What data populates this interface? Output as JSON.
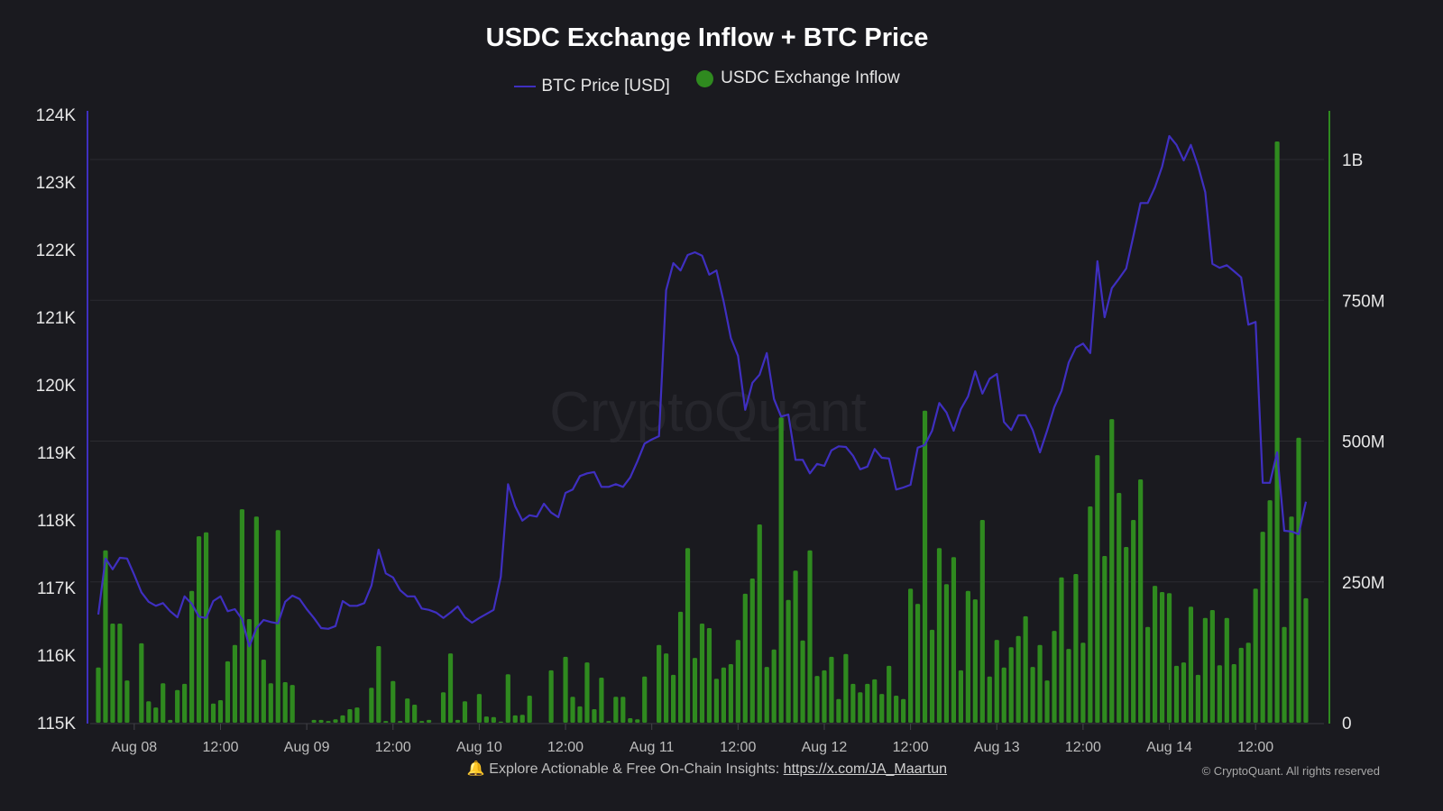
{
  "chart_data": {
    "type": "bar+line",
    "title": "USDC Exchange Inflow + BTC Price",
    "legend": [
      "BTC Price [USD]",
      "USDC Exchange Inflow"
    ],
    "legend_position": "top-center",
    "x_start": "Aug 07 19:00",
    "x_interval": "1 hour",
    "x_tick_labels": [
      "Aug 08",
      "12:00",
      "Aug 09",
      "12:00",
      "Aug 10",
      "12:00",
      "Aug 11",
      "12:00",
      "Aug 12",
      "12:00",
      "Aug 13",
      "12:00",
      "Aug 14",
      "12:00"
    ],
    "y_left": {
      "label": "BTC Price [USD]",
      "range": [
        115000,
        124000
      ],
      "tick_labels": [
        "115K",
        "116K",
        "117K",
        "118K",
        "119K",
        "120K",
        "121K",
        "122K",
        "123K",
        "124K"
      ]
    },
    "y_right": {
      "label": "USDC Exchange Inflow",
      "unit": "M USD",
      "range": [
        0,
        1080
      ],
      "tick_labels": [
        "0",
        "250M",
        "500M",
        "750M",
        "1B"
      ]
    },
    "grid": "horizontal, right axis",
    "colors": {
      "background": "#1a1a1f",
      "price_line": "#3f2fc0",
      "inflow_bars": "#2f8a1f",
      "grid": "#2b2b31"
    },
    "series": [
      {
        "name": "BTC Price [USD]",
        "type": "line",
        "axis": "left",
        "values": [
          116600,
          117430,
          117270,
          117440,
          117430,
          117190,
          116930,
          116790,
          116730,
          116770,
          116650,
          116560,
          116870,
          116760,
          116570,
          116550,
          116800,
          116870,
          116650,
          116680,
          116530,
          116130,
          116400,
          116520,
          116490,
          116470,
          116790,
          116880,
          116830,
          116680,
          116550,
          116400,
          116390,
          116430,
          116800,
          116730,
          116730,
          116770,
          117030,
          117560,
          117210,
          117150,
          116960,
          116870,
          116870,
          116690,
          116670,
          116630,
          116550,
          116630,
          116720,
          116560,
          116480,
          116550,
          116610,
          116670,
          117160,
          118530,
          118200,
          117990,
          118070,
          118050,
          118240,
          118110,
          118040,
          118400,
          118450,
          118650,
          118690,
          118710,
          118490,
          118490,
          118530,
          118490,
          118630,
          118870,
          119130,
          119190,
          119240,
          121400,
          121800,
          121690,
          121920,
          121960,
          121910,
          121630,
          121690,
          121230,
          120690,
          120430,
          119630,
          120030,
          120150,
          120470,
          119790,
          119530,
          119560,
          118890,
          118890,
          118690,
          118830,
          118800,
          119030,
          119090,
          119080,
          118950,
          118750,
          118790,
          119050,
          118920,
          118910,
          118450,
          118480,
          118520,
          119070,
          119110,
          119320,
          119730,
          119590,
          119320,
          119640,
          119830,
          120200,
          119870,
          120090,
          120160,
          119450,
          119330,
          119550,
          119550,
          119330,
          119000,
          119320,
          119670,
          119910,
          120330,
          120550,
          120610,
          120470,
          121830,
          121000,
          121430,
          121570,
          121720,
          122200,
          122690,
          122690,
          122920,
          123230,
          123680,
          123550,
          123320,
          123550,
          123240,
          122850,
          121790,
          121730,
          121770,
          121680,
          121590,
          120890,
          120930,
          118550,
          118550,
          119000,
          117840,
          117830,
          117790,
          118270
        ]
      },
      {
        "name": "USDC Exchange Inflow",
        "type": "bar",
        "axis": "right",
        "values": [
          98,
          306,
          176,
          176,
          75,
          0,
          141,
          38,
          27,
          70,
          5,
          58,
          69,
          234,
          331,
          338,
          34,
          40,
          109,
          138,
          379,
          184,
          366,
          112,
          70,
          342,
          72,
          67,
          0,
          0,
          5,
          5,
          3,
          6,
          13,
          24,
          27,
          0,
          62,
          136,
          3,
          74,
          3,
          43,
          32,
          3,
          5,
          0,
          54,
          123,
          5,
          38,
          0,
          51,
          11,
          10,
          2,
          86,
          13,
          14,
          48,
          0,
          0,
          93,
          0,
          117,
          46,
          29,
          107,
          24,
          80,
          3,
          46,
          46,
          8,
          6,
          82,
          0,
          138,
          123,
          85,
          197,
          310,
          115,
          176,
          168,
          78,
          98,
          104,
          147,
          229,
          256,
          352,
          99,
          130,
          542,
          218,
          270,
          146,
          306,
          83,
          93,
          117,
          42,
          122,
          69,
          54,
          69,
          77,
          51,
          101,
          48,
          42,
          238,
          211,
          554,
          165,
          310,
          246,
          294,
          93,
          234,
          219,
          360,
          82,
          147,
          98,
          134,
          154,
          189,
          99,
          138,
          75,
          163,
          258,
          131,
          264,
          142,
          384,
          475,
          296,
          539,
          408,
          312,
          360,
          432,
          170,
          243,
          232,
          230,
          101,
          107,
          206,
          85,
          186,
          200,
          102,
          186,
          104,
          133,
          142,
          238,
          339,
          395,
          1032,
          170,
          366,
          506,
          221
        ]
      }
    ]
  },
  "watermark": "CryptoQuant",
  "footer": {
    "icon": "bell-icon",
    "text": "Explore Actionable & Free On-Chain Insights: ",
    "link": "https://x.com/JA_Maartun",
    "copyright": "© CryptoQuant. All rights reserved"
  }
}
